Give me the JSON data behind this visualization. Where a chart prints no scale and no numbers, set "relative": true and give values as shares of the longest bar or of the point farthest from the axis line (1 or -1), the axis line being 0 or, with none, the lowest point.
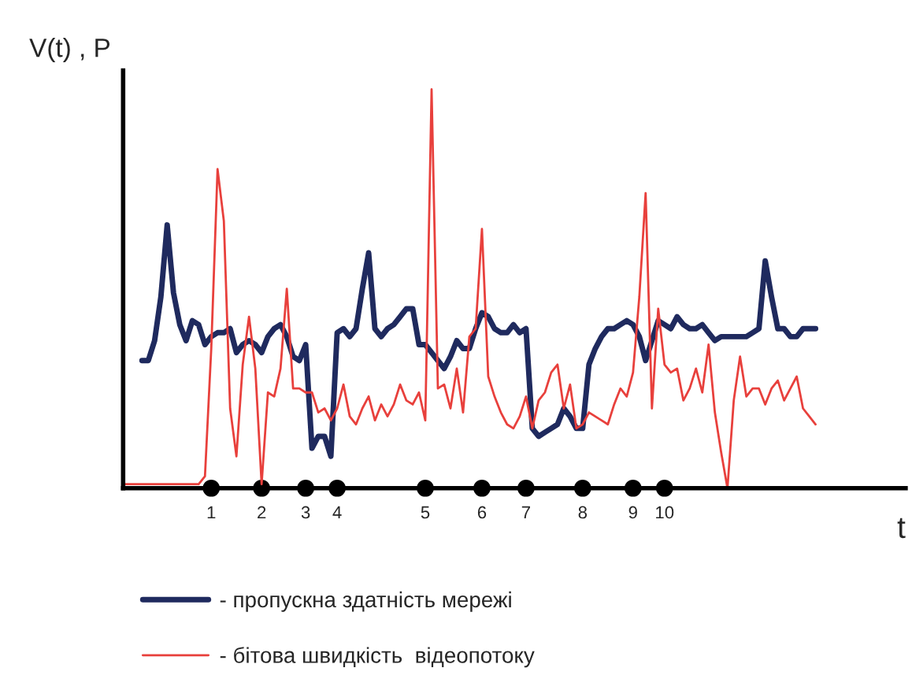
{
  "chart_data": {
    "type": "line",
    "relative": true,
    "xlabel": "t",
    "ylabel": "V(t) , P",
    "legend": "bottom",
    "categories": [
      null,
      null,
      null,
      null,
      null,
      null,
      null,
      null,
      null,
      null,
      null,
      null,
      null,
      null,
      "1",
      null,
      null,
      null,
      null,
      null,
      null,
      null,
      "2",
      null,
      null,
      null,
      null,
      null,
      null,
      "3",
      null,
      null,
      null,
      null,
      "4",
      null,
      null,
      null,
      null,
      null,
      null,
      null,
      null,
      null,
      null,
      null,
      null,
      null,
      "5",
      null,
      null,
      null,
      null,
      null,
      null,
      null,
      null,
      "6",
      null,
      null,
      null,
      null,
      null,
      null,
      "7",
      null,
      null,
      null,
      null,
      null,
      null,
      null,
      null,
      "8",
      null,
      null,
      null,
      null,
      null,
      null,
      null,
      "9",
      null,
      null,
      null,
      null,
      "10",
      null,
      null,
      null,
      null,
      null,
      null,
      null,
      null,
      null,
      null,
      null,
      null,
      null,
      null,
      null,
      null,
      null,
      null,
      null,
      null,
      null,
      null,
      null,
      null
    ],
    "series": [
      {
        "name": "- пропускна здатність мережі",
        "color": "#1f2a5e",
        "values": [
          null,
          null,
          null,
          0.32,
          0.32,
          0.37,
          0.48,
          0.66,
          0.49,
          0.41,
          0.37,
          0.42,
          0.41,
          0.36,
          0.38,
          0.39,
          0.39,
          0.4,
          0.34,
          0.36,
          0.37,
          0.36,
          0.34,
          0.38,
          0.4,
          0.41,
          0.38,
          0.33,
          0.32,
          0.36,
          0.1,
          0.13,
          0.13,
          0.08,
          0.39,
          0.4,
          0.38,
          0.4,
          0.5,
          0.59,
          0.4,
          0.38,
          0.4,
          0.41,
          0.43,
          0.45,
          0.45,
          0.36,
          0.36,
          0.34,
          0.32,
          0.3,
          0.33,
          0.37,
          0.35,
          0.35,
          0.4,
          0.44,
          0.43,
          0.4,
          0.39,
          0.39,
          0.41,
          0.39,
          0.4,
          0.15,
          0.13,
          0.14,
          0.15,
          0.16,
          0.2,
          0.18,
          0.15,
          0.15,
          0.31,
          0.35,
          0.38,
          0.4,
          0.4,
          0.41,
          0.42,
          0.41,
          0.38,
          0.32,
          0.37,
          0.42,
          0.41,
          0.4,
          0.43,
          0.41,
          0.4,
          0.4,
          0.41,
          0.39,
          0.37,
          0.38,
          0.38,
          0.38,
          0.38,
          0.38,
          0.39,
          0.4,
          0.57,
          0.48,
          0.4,
          0.4,
          0.38,
          0.38,
          0.4,
          0.4,
          0.4
        ]
      },
      {
        "name": "- бітова швидкість  відеопотоку",
        "color": "#e8403c",
        "values": [
          0.01,
          0.01,
          0.01,
          0.01,
          0.01,
          0.01,
          0.01,
          0.01,
          0.01,
          0.01,
          0.01,
          0.01,
          0.01,
          0.03,
          0.35,
          0.8,
          0.67,
          0.2,
          0.08,
          0.31,
          0.43,
          0.3,
          0.01,
          0.24,
          0.23,
          0.3,
          0.5,
          0.25,
          0.25,
          0.24,
          0.24,
          0.19,
          0.2,
          0.17,
          0.2,
          0.26,
          0.18,
          0.16,
          0.2,
          0.23,
          0.17,
          0.21,
          0.18,
          0.21,
          0.26,
          0.22,
          0.21,
          0.24,
          0.17,
          1.0,
          0.25,
          0.26,
          0.2,
          0.3,
          0.19,
          0.38,
          0.4,
          0.65,
          0.28,
          0.23,
          0.19,
          0.16,
          0.15,
          0.18,
          0.23,
          0.15,
          0.22,
          0.24,
          0.29,
          0.31,
          0.2,
          0.26,
          0.15,
          0.16,
          0.19,
          0.18,
          0.17,
          0.16,
          0.21,
          0.25,
          0.23,
          0.29,
          0.48,
          0.74,
          0.2,
          0.45,
          0.31,
          0.29,
          0.3,
          0.22,
          0.25,
          0.3,
          0.24,
          0.36,
          0.19,
          0.09,
          0,
          0.22,
          0.33,
          0.23,
          0.25,
          0.25,
          0.21,
          0.25,
          0.27,
          0.22,
          0.25,
          0.28,
          0.2,
          0.18,
          0.16
        ]
      }
    ]
  }
}
